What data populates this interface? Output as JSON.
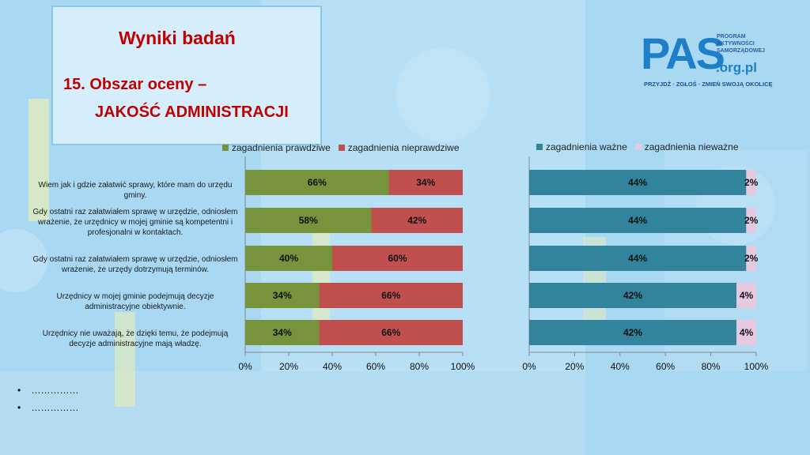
{
  "header": {
    "title": "Wyniki badań",
    "subtitle_line1": "15. Obszar oceny –",
    "subtitle_line2": "JAKOŚĆ ADMINISTRACJI"
  },
  "logo": {
    "main": "PAS",
    "side_line1": "PROGRAM",
    "side_line2": "AKTYWNOŚCI",
    "side_line3": "SAMORZĄDOWEJ",
    "domain": ".org.pl",
    "slogan": "PRZYJDŹ · ZGŁOŚ · ZMIEŃ SWOJĄ OKOLICĘ"
  },
  "rows": [
    "Wiem jak i gdzie załatwić sprawy, które mam do urzędu gminy.",
    "Gdy ostatni raz załatwiałem sprawę w urzędzie, odniosłem wrażenie, że urzędnicy w mojej gminie są kompetentni i profesjonalni w kontaktach.",
    "Gdy ostatni raz załatwiałem sprawę w urzędzie, odniosłem wrażenie, że urzędy dotrzymują terminów.",
    "Urzędnicy w mojej gminie podejmują decyzje administracyjne obiektywnie.",
    "Urzędnicy nie uważają, że dzięki temu, że podejmują decyzje administracyjne mają władzę."
  ],
  "bullets": [
    "……………",
    "……………"
  ],
  "colors": {
    "green": "#77933c",
    "red": "#c0504d",
    "teal": "#31849b",
    "pink": "#e6c9e0"
  },
  "chart_data": [
    {
      "type": "bar",
      "orientation": "horizontal",
      "stacked": true,
      "categories": [
        "Wiem jak i gdzie załatwić sprawy, które mam do urzędu gminy.",
        "Gdy ostatni raz załatwiałem sprawę w urzędzie, odniosłem wrażenie, że urzędnicy w mojej gminie są kompetentni i profesjonalni w kontaktach.",
        "Gdy ostatni raz załatwiałem sprawę w urzędzie, odniosłem wrażenie, że urzędy dotrzymują terminów.",
        "Urzędnicy w mojej gminie podejmują decyzje administracyjne obiektywnie.",
        "Urzędnicy nie uważają, że dzięki temu, że podejmują decyzje administracyjne mają władzę."
      ],
      "series": [
        {
          "name": "zagadnienia prawdziwe",
          "values": [
            66,
            58,
            40,
            34,
            34
          ],
          "labels": [
            "66%",
            "58%",
            "40%",
            "34%",
            "34%"
          ],
          "color": "#77933c"
        },
        {
          "name": "zagadnienia nieprawdziwe",
          "values": [
            34,
            42,
            60,
            66,
            66
          ],
          "labels": [
            "34%",
            "42%",
            "60%",
            "66%",
            "66%"
          ],
          "color": "#c0504d"
        }
      ],
      "xlim": [
        0,
        100
      ],
      "ticks": [
        "0%",
        "20%",
        "40%",
        "60%",
        "80%",
        "100%"
      ],
      "legend": "top"
    },
    {
      "type": "bar",
      "orientation": "horizontal",
      "stacked": true,
      "categories": [
        "Wiem jak i gdzie załatwić sprawy, które mam do urzędu gminy.",
        "Gdy ostatni raz załatwiałem sprawę w urzędzie, odniosłem wrażenie, że urzędnicy w mojej gminie są kompetentni i profesjonalni w kontaktach.",
        "Gdy ostatni raz załatwiałem sprawę w urzędzie, odniosłem wrażenie, że urzędy dotrzymują terminów.",
        "Urzędnicy w mojej gminie podejmują decyzje administracyjne obiektywnie.",
        "Urzędnicy nie uważają, że dzięki temu, że podejmują decyzje administracyjne mają władzę."
      ],
      "series": [
        {
          "name": "zagadnienia ważne",
          "values": [
            95.6,
            95.6,
            95.6,
            91.3,
            91.3
          ],
          "labels": [
            "44%",
            "44%",
            "44%",
            "42%",
            "42%"
          ],
          "color": "#31849b"
        },
        {
          "name": "zagadnienia nieważne",
          "values": [
            4.4,
            4.4,
            4.4,
            8.7,
            8.7
          ],
          "labels": [
            "2%",
            "2%",
            "2%",
            "4%",
            "4%"
          ],
          "color": "#e6c9e0"
        }
      ],
      "xlim": [
        0,
        100
      ],
      "ticks": [
        "0%",
        "20%",
        "40%",
        "60%",
        "80%",
        "100%"
      ],
      "legend": "top"
    }
  ]
}
